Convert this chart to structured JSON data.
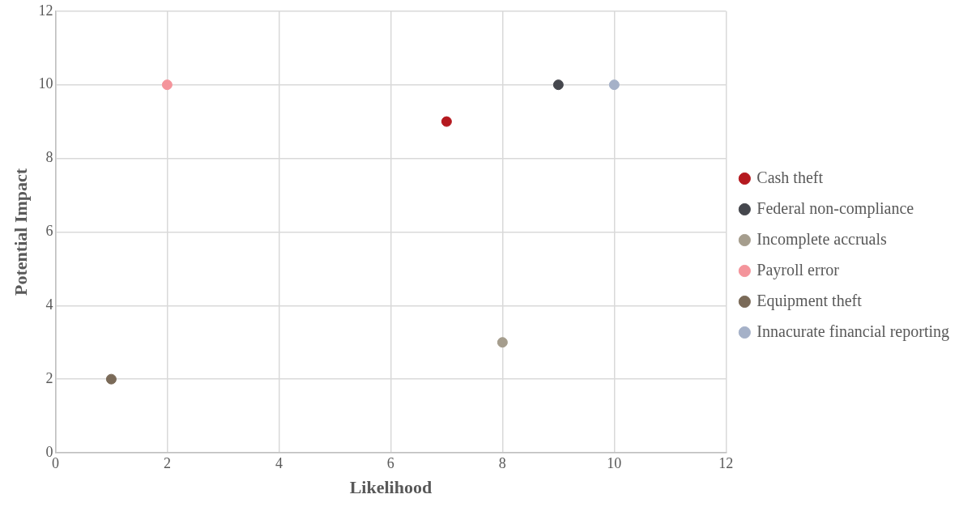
{
  "chart_data": {
    "type": "scatter",
    "xlabel": "Likelihood",
    "ylabel": "Potential Impact",
    "series": [
      {
        "name": "Cash theft",
        "color": "#b5191f",
        "x": [
          7
        ],
        "values": [
          9
        ]
      },
      {
        "name": "Federal non-compliance",
        "color": "#45474d",
        "x": [
          9
        ],
        "values": [
          10
        ]
      },
      {
        "name": "Incomplete accruals",
        "color": "#a59d8d",
        "x": [
          8
        ],
        "values": [
          3
        ]
      },
      {
        "name": "Payroll error",
        "color": "#f4949b",
        "x": [
          2
        ],
        "values": [
          10
        ]
      },
      {
        "name": "Equipment theft",
        "color": "#7a6a58",
        "x": [
          1
        ],
        "values": [
          2
        ]
      },
      {
        "name": "Innacurate financial reporting",
        "color": "#a5b1c8",
        "x": [
          10
        ],
        "values": [
          10
        ]
      }
    ],
    "xlim": [
      0,
      12
    ],
    "xticks": [
      0,
      2,
      4,
      6,
      8,
      10,
      12
    ],
    "ylim": [
      0,
      12
    ],
    "yticks": [
      0,
      2,
      4,
      6,
      8,
      10,
      12
    ],
    "grid": true,
    "legend": "right",
    "marker": "circle"
  }
}
